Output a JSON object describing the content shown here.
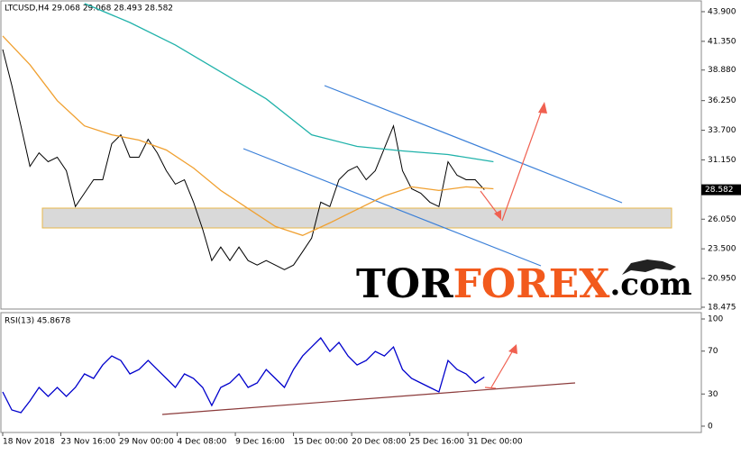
{
  "watermark": [
    "TOR",
    "FOREX",
    ".com"
  ],
  "chart_data": [
    {
      "type": "line",
      "title": "LTCUSD,H4  29.068 29.068 28.493 28.582",
      "xlim": [
        0,
        384.4
      ],
      "ylim": [
        18.32,
        44.75
      ],
      "yticks": [
        {
          "value": 43.9,
          "label": "43.900"
        },
        {
          "value": 41.35,
          "label": "41.350"
        },
        {
          "value": 38.88,
          "label": "38.880"
        },
        {
          "value": 36.25,
          "label": "36.250"
        },
        {
          "value": 33.7,
          "label": "33.700"
        },
        {
          "value": 31.15,
          "label": "31.150"
        },
        {
          "value": 26.05,
          "label": "26.050"
        },
        {
          "value": 23.5,
          "label": "23.500"
        },
        {
          "value": 20.95,
          "label": "20.950"
        },
        {
          "value": 18.475,
          "label": "18.475"
        }
      ],
      "price_marker": {
        "value": 28.582,
        "label": "28.582"
      },
      "series": [
        {
          "color": "#000000",
          "x": [
            0,
            5,
            10,
            15,
            20,
            25,
            30,
            35,
            40,
            45,
            50,
            55,
            60,
            65,
            70,
            75,
            80,
            85,
            90,
            95,
            100,
            105,
            110,
            115,
            120,
            125,
            130,
            135,
            140,
            145,
            150,
            155,
            160,
            165,
            170,
            175,
            180,
            185,
            190,
            195,
            200,
            205,
            210,
            215,
            220,
            225,
            230,
            235,
            240,
            245,
            250,
            255,
            260,
            265
          ],
          "values": [
            40.65,
            37.56,
            34.08,
            30.6,
            31.76,
            30.99,
            31.38,
            30.22,
            27.13,
            28.29,
            29.44,
            29.44,
            32.54,
            33.31,
            31.38,
            31.38,
            32.92,
            31.76,
            30.22,
            29.06,
            29.44,
            27.51,
            25.19,
            22.49,
            23.65,
            22.49,
            23.65,
            22.49,
            22.1,
            22.49,
            22.1,
            21.71,
            22.1,
            23.26,
            24.42,
            27.51,
            27.13,
            29.44,
            30.22,
            30.6,
            29.44,
            30.22,
            32.15,
            34.08,
            30.22,
            28.67,
            28.29,
            27.51,
            27.13,
            30.99,
            29.83,
            29.44,
            29.44,
            28.58
          ]
        },
        {
          "color": "#f0a030",
          "x": [
            0,
            15,
            30,
            45,
            60,
            75,
            90,
            105,
            120,
            135,
            150,
            165,
            180,
            195,
            210,
            225,
            240,
            255,
            270
          ],
          "values": [
            41.81,
            39.34,
            36.25,
            34.08,
            33.31,
            32.85,
            32.0,
            30.45,
            28.52,
            26.97,
            25.43,
            24.65,
            25.73,
            26.89,
            28.05,
            28.83,
            28.52,
            28.83,
            28.67
          ]
        },
        {
          "color": "#20b2aa",
          "x": [
            45,
            70,
            95,
            120,
            145,
            170,
            195,
            220,
            245,
            270
          ],
          "values": [
            44.6,
            42.97,
            41.04,
            38.72,
            36.4,
            33.31,
            32.31,
            31.92,
            31.61,
            30.99
          ]
        }
      ]
    },
    {
      "type": "line",
      "title": "RSI(13) 45.8678",
      "xlim": [
        0,
        384.4
      ],
      "ylim": [
        -5.9,
        105.9
      ],
      "yticks": [
        0,
        30,
        70,
        100
      ],
      "xticks": [
        {
          "value": 0,
          "label": "18 Nov 2018"
        },
        {
          "value": 32,
          "label": "23 Nov 16:00"
        },
        {
          "value": 64,
          "label": "29 Nov 00:00"
        },
        {
          "value": 96,
          "label": "4 Dec 08:00"
        },
        {
          "value": 128,
          "label": "9 Dec 16:00"
        },
        {
          "value": 160,
          "label": "15 Dec 00:00"
        },
        {
          "value": 192,
          "label": "20 Dec 08:00"
        },
        {
          "value": 224,
          "label": "25 Dec 16:00"
        },
        {
          "value": 256,
          "label": "31 Dec 00:00"
        }
      ],
      "series": [
        {
          "color": "#0000cc",
          "x": [
            0,
            5,
            10,
            15,
            20,
            25,
            30,
            35,
            40,
            45,
            50,
            55,
            60,
            65,
            70,
            75,
            80,
            85,
            90,
            95,
            100,
            105,
            110,
            115,
            120,
            125,
            130,
            135,
            140,
            145,
            150,
            155,
            160,
            165,
            170,
            175,
            180,
            185,
            190,
            195,
            200,
            205,
            210,
            215,
            220,
            225,
            230,
            235,
            240,
            245,
            250,
            255,
            260,
            265
          ],
          "values": [
            31.9,
            15.1,
            12.6,
            23.5,
            36.1,
            27.7,
            36.1,
            27.7,
            36.1,
            48.7,
            44.5,
            57.1,
            65.5,
            61.3,
            48.7,
            52.9,
            61.3,
            52.9,
            44.5,
            36.1,
            48.7,
            44.5,
            36.1,
            19.3,
            36.1,
            40.3,
            48.7,
            36.1,
            40.3,
            52.9,
            44.5,
            36.1,
            52.9,
            65.5,
            73.9,
            82.4,
            69.7,
            78.2,
            65.5,
            57.1,
            61.3,
            69.7,
            65.5,
            73.9,
            52.9,
            44.5,
            40.3,
            36.1,
            31.9,
            61.3,
            52.9,
            48.7,
            40.3,
            45.87
          ]
        }
      ]
    }
  ]
}
